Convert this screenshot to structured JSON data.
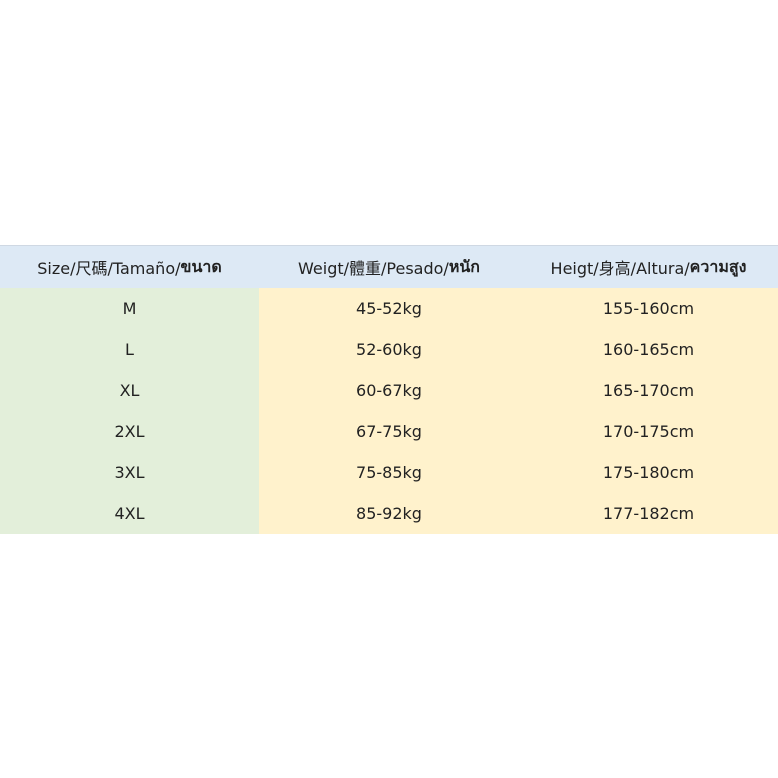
{
  "table": {
    "header": [
      {
        "text": "Size/尺碼/Tamaño/",
        "bold": "ขนาด"
      },
      {
        "text": "Weigt/體重/Pesado/",
        "bold": "หนัก"
      },
      {
        "text": "Heigt/身高/Altura/",
        "bold": "ความสูง"
      }
    ],
    "rows": [
      [
        "M",
        "45-52kg",
        "155-160cm"
      ],
      [
        "L",
        "52-60kg",
        "160-165cm"
      ],
      [
        "XL",
        "60-67kg",
        "165-170cm"
      ],
      [
        "2XL",
        "67-75kg",
        "170-175cm"
      ],
      [
        "3XL",
        "75-85kg",
        "175-180cm"
      ],
      [
        "4XL",
        "85-92kg",
        "177-182cm"
      ]
    ]
  }
}
